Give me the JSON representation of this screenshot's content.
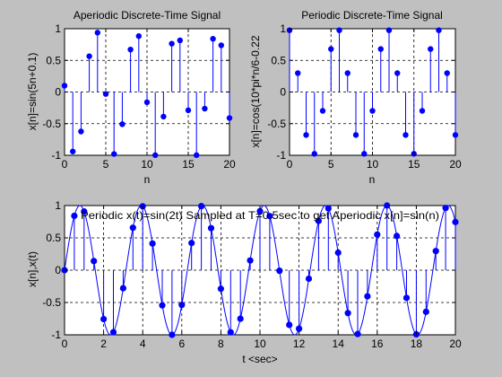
{
  "figure": {
    "background": "#c0c0c0",
    "axes_background": "#ffffff",
    "stem_color": "#0000ff",
    "marker_color": "#0000ff",
    "grid_color": "#000000"
  },
  "chart_data": [
    {
      "id": "top-left",
      "type": "stem",
      "title": "Aperiodic Discrete-Time Signal",
      "xlabel": "n",
      "ylabel": "x[n]=sin(5n+0.1)",
      "xlim": [
        0,
        20
      ],
      "ylim": [
        -1,
        1
      ],
      "xticks": [
        0,
        5,
        10,
        15,
        20
      ],
      "yticks": [
        -1,
        -0.5,
        0,
        0.5,
        1
      ],
      "xtick_labels": [
        "0",
        "5",
        "10",
        "15",
        "20"
      ],
      "ytick_labels": [
        "-1",
        "-0.5",
        "0",
        "0.5",
        "1"
      ],
      "grid": true,
      "series": [
        {
          "n": [
            0,
            1,
            2,
            3,
            4,
            5,
            6,
            7,
            8,
            9,
            10,
            11,
            12,
            13,
            14,
            15,
            16,
            17,
            18,
            19,
            20
          ],
          "values": [
            0.1,
            -0.94,
            -0.624,
            0.565,
            0.938,
            -0.031,
            -0.979,
            -0.509,
            0.671,
            0.883,
            -0.162,
            -0.998,
            -0.389,
            0.764,
            0.816,
            -0.289,
            -0.998,
            -0.263,
            0.841,
            0.738,
            -0.412
          ]
        }
      ]
    },
    {
      "id": "top-right",
      "type": "stem",
      "title": "Periodic Discrete-Time Signal",
      "xlabel": "n",
      "ylabel": "x[n]=cos(10*pi*n/6-0.22",
      "xlim": [
        0,
        20
      ],
      "ylim": [
        -1,
        1
      ],
      "xticks": [
        0,
        5,
        10,
        15,
        20
      ],
      "yticks": [
        -1,
        -0.5,
        0,
        0.5,
        1
      ],
      "xtick_labels": [
        "0",
        "5",
        "10",
        "15",
        "20"
      ],
      "ytick_labels": [
        "-1",
        "-0.5",
        "0",
        "0.5",
        "1"
      ],
      "grid": true,
      "series": [
        {
          "n": [
            0,
            1,
            2,
            3,
            4,
            5,
            6,
            7,
            8,
            9,
            10,
            11,
            12,
            13,
            14,
            15,
            16,
            17,
            18,
            19,
            20
          ],
          "values": [
            0.976,
            0.298,
            -0.679,
            -0.976,
            -0.298,
            0.679,
            0.976,
            0.298,
            -0.679,
            -0.976,
            -0.298,
            0.679,
            0.976,
            0.298,
            -0.679,
            -0.976,
            -0.298,
            0.679,
            0.976,
            0.298,
            -0.679
          ]
        }
      ]
    },
    {
      "id": "bottom",
      "type": "line+stem",
      "title": "Periodic x(t)=sin(2t) Sampled at T=0.5sec to get Aperiodic x[n]=sin(n)",
      "xlabel": "t <sec>",
      "ylabel": "x[n],x(t)",
      "xlim": [
        0,
        20
      ],
      "ylim": [
        -1,
        1
      ],
      "xticks": [
        0,
        2,
        4,
        6,
        8,
        10,
        12,
        14,
        16,
        18,
        20
      ],
      "yticks": [
        -1,
        -0.5,
        0,
        0.5,
        1
      ],
      "xtick_labels": [
        "0",
        "2",
        "4",
        "6",
        "8",
        "10",
        "12",
        "14",
        "16",
        "18",
        "20"
      ],
      "ytick_labels": [
        "-1",
        "-0.5",
        "0",
        "0.5",
        "1"
      ],
      "grid": true,
      "continuous": {
        "function": "sin(2t)",
        "t_range": [
          0,
          20
        ]
      },
      "samples": {
        "t": [
          0,
          0.5,
          1,
          1.5,
          2,
          2.5,
          3,
          3.5,
          4,
          4.5,
          5,
          5.5,
          6,
          6.5,
          7,
          7.5,
          8,
          8.5,
          9,
          9.5,
          10,
          10.5,
          11,
          11.5,
          12,
          12.5,
          13,
          13.5,
          14,
          14.5,
          15,
          15.5,
          16,
          16.5,
          17,
          17.5,
          18,
          18.5,
          19,
          19.5,
          20
        ],
        "values": [
          0,
          0.841,
          0.909,
          0.141,
          -0.757,
          -0.959,
          -0.279,
          0.657,
          0.989,
          0.412,
          -0.544,
          -1.0,
          -0.537,
          0.42,
          0.991,
          0.65,
          -0.288,
          -0.961,
          -0.751,
          0.15,
          0.913,
          0.837,
          -0.009,
          -0.846,
          -0.906,
          -0.132,
          0.763,
          0.956,
          0.271,
          -0.664,
          -0.988,
          -0.404,
          0.551,
          1.0,
          0.529,
          -0.428,
          -0.992,
          -0.644,
          0.296,
          0.963,
          0.745
        ]
      }
    }
  ]
}
